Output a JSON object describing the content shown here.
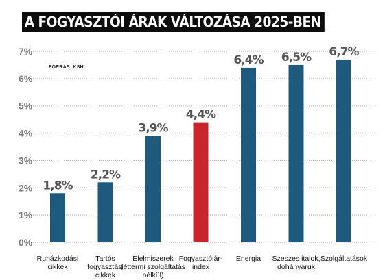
{
  "title": "A FOGYASZTÓI ÁRAK VÁLTOZÁSA 2025-BEN",
  "source": "FORRÁS: KSH",
  "colors": {
    "bar": "#1e5a7d",
    "highlight": "#c8262d",
    "grid": "#b0b0b0"
  },
  "chart_data": {
    "type": "bar",
    "categories": [
      [
        "Ruházkodási",
        "cikkek"
      ],
      [
        "Tartós",
        "fogyasztási",
        "cikkek"
      ],
      [
        "Élelmiszerek",
        "(éttermi szolgáltatás",
        "nélkül)"
      ],
      [
        "Fogyasztóiár-",
        "index"
      ],
      [
        "Energia"
      ],
      [
        "Szeszes italok,",
        "dohányáruk"
      ],
      [
        "Szolgáltatások"
      ]
    ],
    "values": [
      1.8,
      2.2,
      3.9,
      4.4,
      6.4,
      6.5,
      6.7
    ],
    "value_labels": [
      "1,8%",
      "2,2%",
      "3,9%",
      "4,4%",
      "6,4%",
      "6,5%",
      "6,7%"
    ],
    "highlight_index": 3,
    "ylim": [
      0,
      7
    ],
    "yticks": [
      0,
      1,
      2,
      3,
      4,
      5,
      6,
      7
    ],
    "ytick_labels": [
      "0%",
      "1%",
      "2%",
      "3%",
      "4%",
      "5%",
      "6%",
      "7%"
    ],
    "grid": true,
    "xlabel": "",
    "ylabel": ""
  }
}
